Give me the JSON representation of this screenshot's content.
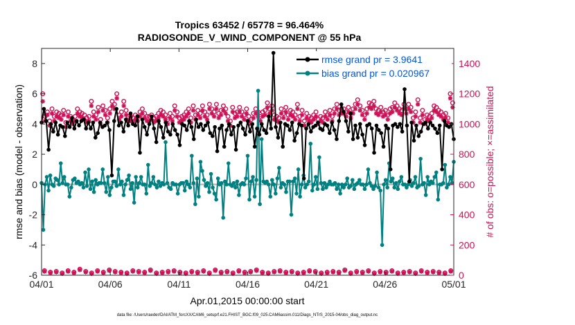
{
  "chart_data": {
    "type": "line",
    "title": "Tropics 63452 / 65778 = 96.464%",
    "subtitle": "RADIOSONDE_V_WIND_COMPONENT @ 55 hPa",
    "xlabel": "Apr.01,2015 00:00:00 start",
    "ylabel_left": "rmse and bias (model - observation)",
    "ylabel_right": "# of obs: o=possible; ×=assimilated",
    "xlim": [
      0,
      30
    ],
    "ylim_left": [
      -6,
      9
    ],
    "ylim_right": [
      0,
      1500
    ],
    "x_ticks": [
      {
        "pos": 0,
        "label": "04/01"
      },
      {
        "pos": 5,
        "label": "04/06"
      },
      {
        "pos": 10,
        "label": "04/11"
      },
      {
        "pos": 15,
        "label": "04/16"
      },
      {
        "pos": 20,
        "label": "04/21"
      },
      {
        "pos": 25,
        "label": "04/26"
      },
      {
        "pos": 30,
        "label": "05/01"
      }
    ],
    "y_ticks_left": [
      "-6",
      "-4",
      "-2",
      "0",
      "2",
      "4",
      "6",
      "8"
    ],
    "y_ticks_right": [
      "0",
      "200",
      "400",
      "600",
      "800",
      "1000",
      "1200",
      "1400"
    ],
    "step_days": 0.25,
    "series": [
      {
        "name": "rmse grand pr = 3.9641",
        "axis": "left",
        "color": "#000000",
        "values": [
          4.1,
          5.0,
          4.2,
          2.3,
          4.0,
          3.5,
          4.1,
          3.3,
          3.9,
          3.8,
          3.2,
          4.1,
          3.8,
          4.4,
          3.7,
          4.2,
          3.9,
          4.2,
          4.3,
          3.7,
          4.1,
          3.7,
          4.1,
          3.1,
          3.4,
          4.1,
          3.8,
          3.9,
          4.1,
          3.6,
          0.6,
          4.2,
          5.0,
          3.9,
          4.1,
          3.5,
          4.3,
          3.9,
          4.7,
          4.0,
          3.9,
          4.5,
          2.1,
          4.3,
          3.8,
          3.3,
          4.0,
          4.5,
          3.7,
          2.8,
          4.2,
          3.8,
          3.1,
          4.1,
          3.5,
          3.3,
          4.0,
          3.6,
          3.3,
          2.6,
          4.0,
          3.9,
          3.6,
          4.2,
          3.8,
          3.0,
          4.3,
          3.8,
          4.0,
          3.6,
          3.9,
          4.1,
          3.4,
          3.2,
          3.8,
          2.2,
          3.7,
          3.9,
          2.5,
          3.6,
          4.0,
          3.3,
          3.8,
          2.3,
          3.9,
          4.1,
          3.7,
          3.3,
          4.2,
          3.5,
          4.0,
          2.5,
          3.7,
          3.3,
          4.0,
          3.6,
          3.4,
          4.5,
          3.7,
          8.7,
          3.8,
          3.1,
          4.1,
          2.5,
          4.0,
          3.9,
          3.6,
          4.1,
          2.9,
          3.4,
          4.0,
          3.9,
          0.4,
          3.7,
          4.0,
          3.5,
          3.8,
          3.9,
          4.1,
          3.7,
          3.6,
          4.0,
          3.9,
          3.4,
          4.1,
          3.6,
          3.0,
          4.2,
          5.3,
          4.8,
          4.2,
          3.5,
          4.7,
          3.0,
          3.9,
          3.1,
          4.0,
          3.3,
          2.6,
          3.9,
          4.0,
          3.7,
          2.1,
          3.9,
          3.6,
          3.4,
          2.5,
          3.9,
          3.7,
          1.0,
          3.9,
          4.0,
          3.8,
          4.0,
          3.5,
          6.3,
          3.9,
          0.2,
          4.1,
          2.9,
          3.9,
          3.2,
          3.5,
          4.0,
          4.1,
          3.7,
          4.1,
          3.9,
          3.7,
          3.4,
          3.9,
          1.0,
          4.2,
          3.9,
          3.8,
          4.0,
          3.0
        ]
      },
      {
        "name": "bias grand pr = 0.020967",
        "axis": "left",
        "color": "#008080",
        "values": [
          0.1,
          -3.0,
          0.0,
          0.5,
          -0.4,
          0.6,
          0.0,
          -0.1,
          0.4,
          0.3,
          0.0,
          1.4,
          0.1,
          0.5,
          0.0,
          0.0,
          -0.8,
          -0.2,
          0.3,
          0.4,
          0.1,
          0.2,
          0.0,
          0.1,
          -0.2,
          0.8,
          -0.1,
          1.0,
          -0.3,
          0.2,
          -0.5,
          0.3,
          0.0,
          0.1,
          0.1,
          1.0,
          0.1,
          -0.5,
          0.5,
          -0.7,
          -0.2,
          0.2,
          0.2,
          -0.1,
          1.0,
          0.0,
          0.2,
          -0.7,
          0.0,
          0.3,
          0.6,
          -0.3,
          0.1,
          -1.2,
          0.5,
          -0.2,
          0.1,
          0.5,
          0.0,
          0.0,
          -0.6,
          1.3,
          -0.1,
          0.1,
          0.5,
          0.0,
          -0.2,
          0.2,
          -0.1,
          0.1,
          0.0,
          2.8,
          0.1,
          -0.2,
          -0.3,
          0.1,
          0.0,
          0.0,
          -0.6,
          0.0,
          0.1,
          0.1,
          -0.4,
          0.2,
          0.0,
          -0.2,
          1.9,
          0.1,
          -1.3,
          0.4,
          -0.8,
          1.5,
          0.9,
          0.3,
          -0.1,
          0.1,
          -0.5,
          0.7,
          -0.2,
          -0.6,
          -1.0,
          0.4,
          0.0,
          0.1,
          -2.2,
          0.2,
          0.0,
          1.4,
          0.0,
          -0.1,
          0.1,
          -0.2,
          0.2,
          -0.7,
          0.0,
          0.1,
          0.0,
          0.4,
          1.9,
          -1.0,
          0.2,
          0.5,
          -0.8,
          0.3,
          6.2,
          -1.3,
          3.0,
          0.2,
          0.1,
          0.2,
          0.0,
          -0.8,
          0.3,
          0.0,
          -0.6,
          0.4,
          1.1,
          -0.2,
          0.1,
          0.0,
          -0.5,
          0.2,
          0.2,
          -2.0,
          0.2,
          0.4,
          -0.6,
          1.0,
          -0.8,
          0.0,
          0.6,
          -0.2,
          0.0,
          0.2,
          2.7,
          -0.4,
          0.0,
          0.5,
          -0.3,
          1.8,
          0.1,
          -0.3,
          0.1,
          -0.2,
          0.0,
          0.2,
          0.0,
          0.0,
          0.1,
          -0.3,
          0.0,
          -0.6,
          0.0,
          -0.2,
          0.0,
          0.4,
          -0.2,
          -0.1,
          0.3,
          -0.3,
          0.0,
          0.1,
          0.3,
          0.0,
          0.0,
          -0.3,
          0.0,
          1.0,
          0.1,
          -0.1,
          -0.3,
          -0.1,
          0.8,
          -0.2,
          -0.4,
          -4.0,
          0.0,
          0.3,
          -0.2,
          1.4,
          0.2,
          0.4,
          -0.2,
          0.1,
          -0.3,
          0.2,
          0.5,
          0.0,
          0.0,
          -0.2,
          0.0,
          0.3,
          -0.1,
          0.1,
          0.5,
          -0.2,
          -0.1,
          1.7,
          0.0,
          0.1,
          -0.7,
          0.5,
          0.0,
          0.2,
          0.1,
          0.5,
          0.8,
          -1.0,
          0.0,
          0.0,
          0.1,
          1.3,
          -0.2,
          0.0,
          0.5,
          0.1,
          1.5
        ]
      }
    ],
    "obs_possible": [
      1200,
      1050,
      1080,
      1020,
      1100,
      1050,
      1080,
      1070,
      1060,
      1090,
      1010,
      1080,
      1050,
      1030,
      1050,
      1100,
      1080,
      1070,
      1060,
      1040,
      1050,
      1150,
      1080,
      1060,
      1110,
      1030,
      1120,
      1090,
      1040,
      1100,
      1150,
      1130,
      1200,
      1060,
      1080,
      1150,
      1090,
      1050,
      1050,
      1040,
      1060,
      1050,
      1080,
      1100,
      1070,
      1050,
      1050,
      1060,
      1040,
      1050,
      1070,
      1090,
      1080,
      1060,
      1030,
      1070,
      1050,
      1120,
      1080,
      1040,
      1050,
      1060,
      1080,
      1100,
      1040,
      1120,
      1060,
      1090,
      1070,
      1120,
      1080,
      1060,
      1130,
      1100,
      1080,
      1130,
      1070,
      1090,
      1120,
      1100,
      1050,
      1020,
      1110,
      1070,
      1080,
      1110,
      1080,
      1060,
      1100,
      1050,
      1030,
      1070,
      1100,
      1080,
      1050,
      1080,
      1090,
      1140,
      1100,
      1120,
      1060,
      1050,
      1040,
      1100,
      1070,
      1110,
      1060,
      1090,
      1080,
      1060,
      1130,
      1050,
      1090,
      1020,
      1070,
      1050,
      1040,
      1060,
      1080,
      1030,
      1050,
      1040,
      1080,
      1060,
      1090,
      1050,
      1100,
      1130,
      1090,
      1100,
      1100,
      1080,
      1110,
      1070,
      1100,
      1130,
      1160,
      1120,
      1090,
      1060,
      1100,
      1140,
      1130,
      1150,
      1100,
      1090,
      1110,
      1080,
      1090,
      1060,
      1100,
      1110,
      1140,
      1120,
      1100,
      1090,
      1130,
      1100,
      1130,
      1110,
      1040,
      1080,
      1160,
      1040,
      1090,
      1030,
      1060,
      1050,
      1070,
      1120,
      1110,
      1090,
      1080,
      1060,
      1070,
      1040,
      1200,
      1140
    ],
    "obs_assimilated": [
      1150,
      1020,
      1060,
      990,
      1070,
      1020,
      1050,
      1040,
      1030,
      1060,
      980,
      1050,
      1020,
      1000,
      1020,
      1070,
      1050,
      1040,
      1030,
      1010,
      1020,
      1120,
      1050,
      1030,
      1080,
      1000,
      1090,
      1060,
      1010,
      1070,
      1120,
      1100,
      1170,
      1030,
      1050,
      1120,
      1060,
      1020,
      1020,
      1010,
      1030,
      1020,
      1050,
      1070,
      1040,
      1020,
      1020,
      1030,
      1010,
      1020,
      1040,
      1060,
      1050,
      1030,
      1000,
      1040,
      1020,
      1090,
      1050,
      1010,
      1020,
      1030,
      1050,
      1070,
      1010,
      1090,
      1030,
      1060,
      1040,
      1090,
      1050,
      1030,
      1100,
      1070,
      1050,
      1100,
      1040,
      1060,
      1090,
      1070,
      1020,
      990,
      1080,
      1040,
      1050,
      1080,
      1050,
      1030,
      1070,
      1020,
      1000,
      1040,
      1070,
      1050,
      1020,
      1050,
      1060,
      1110,
      1070,
      1090,
      1030,
      1020,
      1010,
      1070,
      1040,
      1080,
      1030,
      1060,
      1050,
      1030,
      1100,
      1020,
      1060,
      990,
      1040,
      1020,
      1010,
      1030,
      1050,
      1000,
      1020,
      1010,
      1050,
      1030,
      1060,
      1020,
      1070,
      1100,
      1060,
      1070,
      1070,
      1050,
      1080,
      1040,
      1070,
      1100,
      1130,
      1090,
      1060,
      1030,
      1070,
      1110,
      1100,
      1120,
      1070,
      1060,
      1080,
      1050,
      1060,
      1030,
      1070,
      1080,
      1110,
      1090,
      1070,
      1060,
      1100,
      1070,
      1100,
      1080,
      1010,
      1050,
      1130,
      1010,
      1060,
      1000,
      1030,
      1020,
      1040,
      1090,
      1080,
      1060,
      1050,
      1030,
      1040,
      1010,
      1170,
      1110
    ],
    "obs_bottom_possible": [
      30,
      20,
      25,
      15,
      30,
      20,
      40,
      25,
      15,
      30,
      20,
      35,
      25,
      20,
      15,
      30,
      25,
      20,
      35,
      15,
      20,
      25,
      30,
      20,
      15,
      25,
      20,
      30,
      15,
      35,
      20,
      25,
      15,
      30,
      20,
      25,
      35,
      20,
      15,
      25,
      30,
      20,
      25,
      15,
      20,
      30,
      25,
      15,
      20,
      25,
      20,
      35,
      15,
      25,
      20,
      30,
      15,
      25,
      20,
      30,
      15,
      20,
      25,
      15,
      30,
      20,
      25,
      20,
      15,
      30
    ],
    "obs_bottom_assimilated": [
      25,
      15,
      20,
      10,
      25,
      15,
      35,
      20,
      10,
      25,
      15,
      30,
      20,
      15,
      10,
      25,
      20,
      15,
      30,
      10,
      15,
      20,
      25,
      15,
      10,
      20,
      15,
      25,
      10,
      30,
      15,
      20,
      10,
      25,
      15,
      20,
      30,
      15,
      10,
      20,
      25,
      15,
      20,
      10,
      15,
      25,
      20,
      10,
      15,
      20,
      15,
      30,
      10,
      20,
      15,
      25,
      10,
      20,
      15,
      25,
      10,
      15,
      20,
      10,
      25,
      15,
      20,
      15,
      10,
      25
    ],
    "legend": [
      {
        "label": "rmse grand pr = 3.9641",
        "color": "#0055dd"
      },
      {
        "label": "bias grand pr = 0.020967",
        "color": "#0055dd"
      }
    ],
    "colors": {
      "rmse": "#000000",
      "bias": "#008080",
      "obs": "#cc1155",
      "zero_line": "#bbbbbb",
      "legend_text": "#0055dd"
    },
    "footnote": "data file: /Users/raeder/DAI/ATM_forcXX/CAM6_setup/f.e21.FHIST_BGC.f09_025.CAM6assim.011/Diags_NTrS_2015-04/obs_diag_output.nc"
  }
}
